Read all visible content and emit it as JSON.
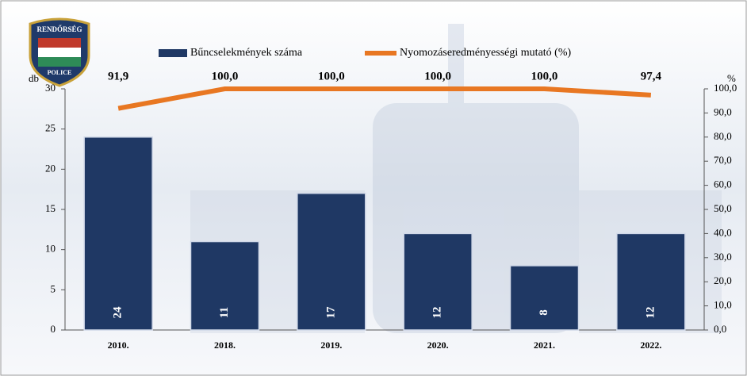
{
  "logo": {
    "top": "RENDŐRSÉG",
    "bottom": "POLICE"
  },
  "chart_data": {
    "type": "bar-line",
    "y_label": "db",
    "y2_label": "%",
    "categories": [
      "2010.",
      "2018.",
      "2019.",
      "2020.",
      "2021.",
      "2022."
    ],
    "series": [
      {
        "name": "Bűncselekmények száma",
        "type": "bar",
        "color": "#1f3864",
        "values": [
          24,
          11,
          17,
          12,
          8,
          12
        ]
      },
      {
        "name": "Nyomozáseredményességi mutató (%)",
        "type": "line",
        "axis": "y2",
        "color": "#e87722",
        "values": [
          91.9,
          100.0,
          100.0,
          100.0,
          100.0,
          97.4
        ],
        "value_labels": [
          "91,9",
          "100,0",
          "100,0",
          "100,0",
          "100,0",
          "97,4"
        ]
      }
    ],
    "ylim": [
      0,
      30
    ],
    "yticks": [
      0,
      5,
      10,
      15,
      20,
      25,
      30
    ],
    "y2lim": [
      0,
      100
    ],
    "y2ticks": [
      {
        "value": 0,
        "label": "0,0"
      },
      {
        "value": 10,
        "label": "10,0"
      },
      {
        "value": 20,
        "label": "20,0"
      },
      {
        "value": 30,
        "label": "30,0"
      },
      {
        "value": 40,
        "label": "40,0"
      },
      {
        "value": 50,
        "label": "50,0"
      },
      {
        "value": 60,
        "label": "60,0"
      },
      {
        "value": 70,
        "label": "70,0"
      },
      {
        "value": 80,
        "label": "80,0"
      },
      {
        "value": 90,
        "label": "90,0"
      },
      {
        "value": 100,
        "label": "100,0"
      }
    ]
  }
}
